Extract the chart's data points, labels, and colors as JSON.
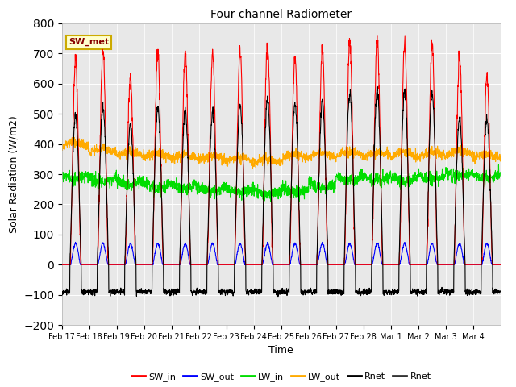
{
  "title": "Four channel Radiometer",
  "xlabel": "Time",
  "ylabel": "Solar Radiation (W/m2)",
  "ylim": [
    -200,
    800
  ],
  "yticks": [
    -200,
    -100,
    0,
    100,
    200,
    300,
    400,
    500,
    600,
    700,
    800
  ],
  "background_color": "#e8e8e8",
  "legend_label": "SW_met",
  "legend_box_facecolor": "#ffffcc",
  "legend_box_edgecolor": "#ccaa00",
  "series": {
    "SW_in": {
      "color": "#ff0000",
      "lw": 0.8
    },
    "SW_out": {
      "color": "#0000ff",
      "lw": 0.8
    },
    "LW_in": {
      "color": "#00dd00",
      "lw": 0.8
    },
    "LW_out": {
      "color": "#ffaa00",
      "lw": 0.8
    },
    "Rnet": {
      "color": "#000000",
      "lw": 0.8
    },
    "Rnet2": {
      "color": "#333333",
      "lw": 0.8
    }
  },
  "xtick_labels": [
    "Feb 17",
    "Feb 18",
    "Feb 19",
    "Feb 20",
    "Feb 21",
    "Feb 22",
    "Feb 23",
    "Feb 24",
    "Feb 25",
    "Feb 26",
    "Feb 27",
    "Feb 28",
    "Mar 1",
    "Mar 2",
    "Mar 3",
    "Mar 4"
  ],
  "num_days": 16,
  "points_per_day": 144,
  "sw_in_peaks": [
    680,
    710,
    625,
    710,
    700,
    700,
    705,
    735,
    685,
    720,
    745,
    755,
    735,
    730,
    695,
    620
  ],
  "rnet_peaks": [
    500,
    520,
    460,
    520,
    510,
    505,
    530,
    550,
    530,
    540,
    570,
    580,
    575,
    570,
    485,
    480
  ],
  "lw_out_base": [
    390,
    370,
    360,
    355,
    350,
    345,
    340,
    335,
    350,
    355,
    360,
    358,
    355,
    358,
    362,
    350
  ],
  "lw_in_base": [
    300,
    290,
    280,
    270,
    268,
    258,
    255,
    248,
    255,
    270,
    295,
    295,
    290,
    298,
    308,
    300
  ]
}
